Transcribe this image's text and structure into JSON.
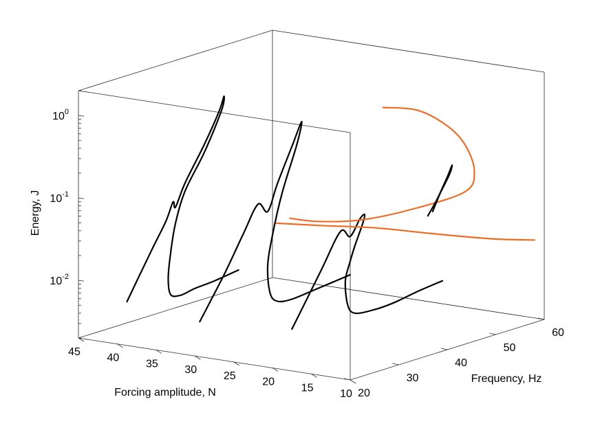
{
  "chart_data": {
    "type": "line",
    "projection": "3d",
    "title": "",
    "axes": {
      "x": {
        "label": "Forcing amplitude, N",
        "ticks": [
          45,
          40,
          35,
          30,
          25,
          20,
          15,
          10
        ],
        "range": [
          10,
          45
        ]
      },
      "y": {
        "label": "Frequency, Hz",
        "ticks": [
          20,
          30,
          40,
          50,
          60
        ],
        "range": [
          20,
          60
        ]
      },
      "z": {
        "label": "Energy, J",
        "scale": "log",
        "ticks": [
          "10^0",
          "10^-1",
          "10^-2"
        ],
        "tick_values": [
          1,
          0.1,
          0.01
        ],
        "range": [
          0.002,
          2
        ]
      }
    },
    "grid": false,
    "legend": "none",
    "colors": {
      "frequency_response": "#000000",
      "backbone": "#f26a21",
      "box": "#262626"
    },
    "series": [
      {
        "color": "#000000",
        "forcing": 40,
        "points": [
          [
            40,
            22,
            0.006
          ],
          [
            40,
            27,
            0.02
          ],
          [
            40,
            30,
            0.04
          ],
          [
            40,
            31.5,
            0.065
          ],
          [
            40,
            32,
            0.055
          ],
          [
            40,
            34,
            0.1
          ],
          [
            40,
            38,
            0.25
          ],
          [
            40,
            41,
            0.55
          ],
          [
            40,
            42,
            0.8
          ],
          [
            40,
            41.5,
            0.55
          ],
          [
            40,
            38,
            0.2
          ],
          [
            40,
            34,
            0.08
          ],
          [
            40,
            32,
            0.035
          ],
          [
            40,
            31,
            0.016
          ],
          [
            40,
            30.5,
            0.008
          ],
          [
            40,
            31,
            0.005
          ],
          [
            40,
            33,
            0.0045
          ],
          [
            40,
            36,
            0.0048
          ],
          [
            40,
            40,
            0.005
          ],
          [
            40,
            45,
            0.0055
          ]
        ]
      },
      {
        "color": "#000000",
        "forcing": 30,
        "points": [
          [
            30,
            21,
            0.005
          ],
          [
            30,
            26,
            0.015
          ],
          [
            30,
            30,
            0.04
          ],
          [
            30,
            33,
            0.08
          ],
          [
            30,
            35,
            0.06
          ],
          [
            30,
            37,
            0.12
          ],
          [
            30,
            40,
            0.3
          ],
          [
            30,
            42,
            0.55
          ],
          [
            30,
            41,
            0.3
          ],
          [
            30,
            38,
            0.09
          ],
          [
            30,
            36,
            0.03
          ],
          [
            30,
            35,
            0.013
          ],
          [
            30,
            35.5,
            0.006
          ],
          [
            30,
            37,
            0.0045
          ],
          [
            30,
            40,
            0.0042
          ],
          [
            30,
            45,
            0.0045
          ],
          [
            30,
            52,
            0.005
          ]
        ]
      },
      {
        "color": "#000000",
        "forcing": 20,
        "points": [
          [
            20,
            24,
            0.005
          ],
          [
            20,
            30,
            0.02
          ],
          [
            20,
            34,
            0.05
          ],
          [
            20,
            36,
            0.04
          ],
          [
            20,
            38,
            0.06
          ],
          [
            20,
            39,
            0.065
          ],
          [
            20,
            38.5,
            0.05
          ],
          [
            20,
            37,
            0.03
          ],
          [
            20,
            36,
            0.02
          ],
          [
            20,
            35,
            0.012
          ],
          [
            20,
            35.5,
            0.006
          ],
          [
            20,
            37,
            0.0045
          ],
          [
            20,
            41,
            0.0042
          ],
          [
            20,
            45,
            0.0043
          ],
          [
            20,
            50,
            0.0048
          ],
          [
            20,
            55,
            0.0052
          ]
        ]
      },
      {
        "color": "#f26a21",
        "name_visible": false,
        "points": [
          [
            22,
            24,
            0.09
          ],
          [
            20,
            30,
            0.07
          ],
          [
            18,
            38,
            0.05
          ],
          [
            15,
            45,
            0.035
          ],
          [
            12,
            52,
            0.025
          ],
          [
            10,
            58,
            0.02
          ]
        ]
      },
      {
        "color": "#f26a21",
        "name_visible": false,
        "points": [
          [
            22,
            46,
            0.9
          ],
          [
            20,
            50,
            0.75
          ],
          [
            18,
            53,
            0.45
          ],
          [
            17,
            55,
            0.25
          ],
          [
            16.5,
            56,
            0.12
          ],
          [
            17,
            55,
            0.07
          ],
          [
            19,
            48,
            0.055
          ],
          [
            21,
            40,
            0.052
          ],
          [
            23,
            34,
            0.06
          ],
          [
            24,
            30,
            0.075
          ]
        ]
      },
      {
        "color": "#000000",
        "forcing": 15,
        "points": [
          [
            15,
            44,
            0.06
          ],
          [
            15,
            46,
            0.09
          ],
          [
            15,
            48,
            0.15
          ],
          [
            15,
            49,
            0.2
          ],
          [
            15,
            48.5,
            0.16
          ],
          [
            15,
            46.5,
            0.1
          ],
          [
            15,
            45,
            0.065
          ]
        ]
      }
    ]
  }
}
